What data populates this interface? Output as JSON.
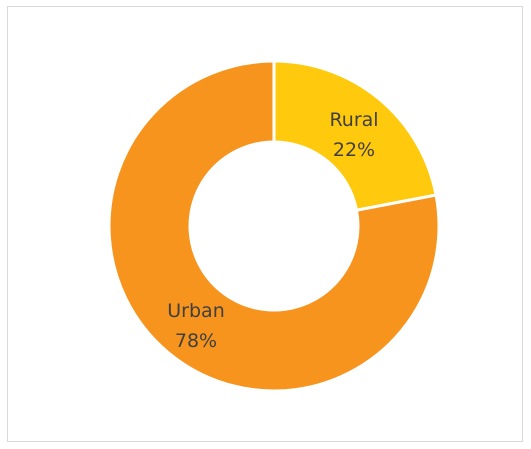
{
  "chart_data": {
    "type": "pie",
    "donut": true,
    "title": "",
    "legend": "none",
    "slices": [
      {
        "label": "Rural",
        "value": 22,
        "value_label": "22%",
        "color": "#FFC90E"
      },
      {
        "label": "Urban",
        "value": 78,
        "value_label": "78%",
        "color": "#F7941D"
      }
    ]
  }
}
